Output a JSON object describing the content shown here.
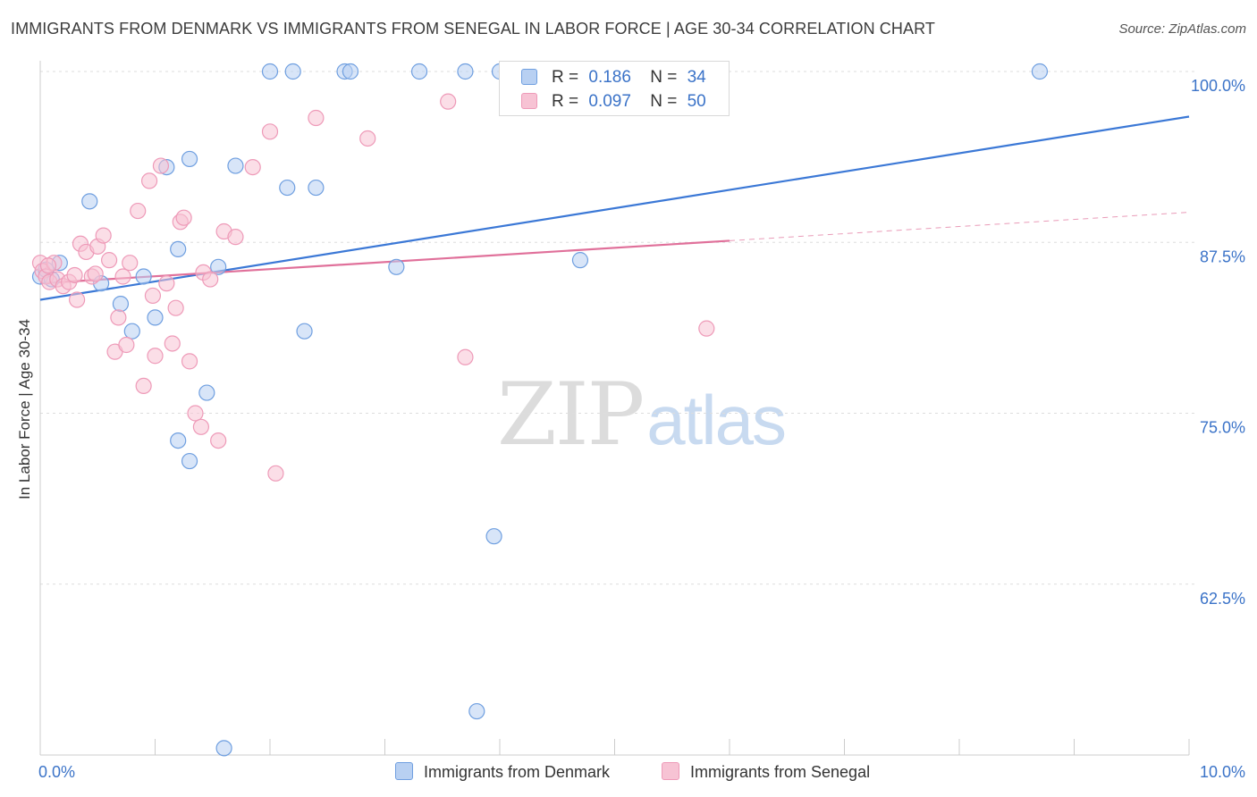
{
  "chart_data": {
    "type": "scatter",
    "title": "IMMIGRANTS FROM DENMARK VS IMMIGRANTS FROM SENEGAL IN LABOR FORCE | AGE 30-34 CORRELATION CHART",
    "source": "Source: ZipAtlas.com",
    "ylabel": "In Labor Force | Age 30-34",
    "xlim": [
      0,
      10
    ],
    "ylim": [
      50,
      100
    ],
    "x_tick_labels": {
      "min": "0.0%",
      "max": "10.0%"
    },
    "y_ticks": [
      {
        "value": 100,
        "label": "100.0%"
      },
      {
        "value": 87.5,
        "label": "87.5%"
      },
      {
        "value": 75,
        "label": "75.0%"
      },
      {
        "value": 62.5,
        "label": "62.5%"
      }
    ],
    "watermark": {
      "part1": "ZIP",
      "part2": "atlas"
    },
    "series": [
      {
        "name": "Immigrants from Denmark",
        "color": "#3b78d6",
        "fill": "#b8d0f2",
        "stroke": "#6f9fe0",
        "r_label": "R =",
        "r": "0.186",
        "n_label": "N =",
        "n": "34",
        "trend": {
          "x0": 0.0,
          "y0": 83.3,
          "x1": 10.0,
          "y1": 96.7,
          "dashed_after": null
        },
        "points": [
          [
            0.0,
            85.0
          ],
          [
            0.1,
            84.8
          ],
          [
            0.17,
            86.0
          ],
          [
            0.43,
            90.5
          ],
          [
            0.53,
            84.5
          ],
          [
            0.7,
            83.0
          ],
          [
            0.8,
            81.0
          ],
          [
            0.9,
            85.0
          ],
          [
            1.0,
            82.0
          ],
          [
            1.1,
            93.0
          ],
          [
            1.2,
            87.0
          ],
          [
            1.2,
            73.0
          ],
          [
            1.3,
            93.6
          ],
          [
            1.3,
            71.5
          ],
          [
            1.45,
            76.5
          ],
          [
            1.55,
            85.7
          ],
          [
            1.6,
            50.5
          ],
          [
            1.7,
            93.1
          ],
          [
            2.0,
            100.0
          ],
          [
            2.15,
            91.5
          ],
          [
            2.2,
            100.0
          ],
          [
            2.3,
            81.0
          ],
          [
            2.4,
            91.5
          ],
          [
            2.65,
            100.0
          ],
          [
            2.7,
            100.0
          ],
          [
            3.1,
            85.7
          ],
          [
            3.3,
            100.0
          ],
          [
            3.7,
            100.0
          ],
          [
            3.8,
            53.2
          ],
          [
            3.95,
            66.0
          ],
          [
            4.0,
            100.0
          ],
          [
            4.7,
            86.2
          ],
          [
            8.7,
            100.0
          ],
          [
            0.05,
            85.5
          ]
        ]
      },
      {
        "name": "Immigrants from Senegal",
        "color": "#e0709a",
        "fill": "#f7c3d4",
        "stroke": "#ee9ab8",
        "r_label": "R =",
        "r": "0.097",
        "n_label": "N =",
        "n": "50",
        "trend": {
          "x0": 0.0,
          "y0": 84.5,
          "x1": 10.0,
          "y1": 89.7,
          "dashed_after": 6.0
        },
        "points": [
          [
            0.0,
            86.0
          ],
          [
            0.02,
            85.4
          ],
          [
            0.05,
            85.0
          ],
          [
            0.08,
            84.6
          ],
          [
            0.12,
            86.0
          ],
          [
            0.15,
            84.8
          ],
          [
            0.2,
            84.3
          ],
          [
            0.25,
            84.6
          ],
          [
            0.3,
            85.1
          ],
          [
            0.32,
            83.3
          ],
          [
            0.35,
            87.4
          ],
          [
            0.4,
            86.8
          ],
          [
            0.45,
            85.0
          ],
          [
            0.5,
            87.2
          ],
          [
            0.55,
            88.0
          ],
          [
            0.6,
            86.2
          ],
          [
            0.65,
            79.5
          ],
          [
            0.68,
            82.0
          ],
          [
            0.72,
            85.0
          ],
          [
            0.75,
            80.0
          ],
          [
            0.78,
            86.0
          ],
          [
            0.85,
            89.8
          ],
          [
            0.9,
            77.0
          ],
          [
            0.95,
            92.0
          ],
          [
            1.0,
            79.2
          ],
          [
            1.05,
            93.1
          ],
          [
            1.1,
            84.5
          ],
          [
            1.15,
            80.1
          ],
          [
            1.18,
            82.7
          ],
          [
            1.22,
            89.0
          ],
          [
            1.25,
            89.3
          ],
          [
            1.3,
            78.8
          ],
          [
            1.35,
            75.0
          ],
          [
            1.4,
            74.0
          ],
          [
            1.42,
            85.3
          ],
          [
            1.48,
            84.8
          ],
          [
            1.55,
            73.0
          ],
          [
            1.6,
            88.3
          ],
          [
            1.7,
            87.9
          ],
          [
            1.85,
            93.0
          ],
          [
            2.0,
            95.6
          ],
          [
            2.05,
            70.6
          ],
          [
            2.4,
            96.6
          ],
          [
            2.85,
            95.1
          ],
          [
            3.55,
            97.8
          ],
          [
            3.7,
            79.1
          ],
          [
            5.8,
            81.2
          ],
          [
            0.07,
            85.8
          ],
          [
            0.48,
            85.2
          ],
          [
            0.98,
            83.6
          ]
        ]
      }
    ]
  }
}
